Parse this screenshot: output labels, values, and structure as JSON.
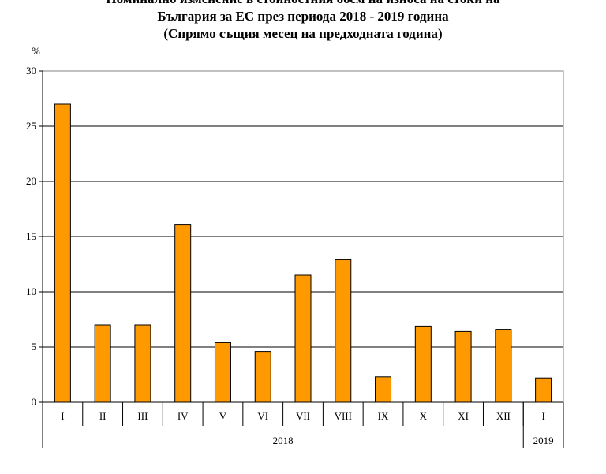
{
  "title_lines": [
    "Номинално изменение в стойностния обем на износа на стоки на",
    "България за ЕС през периода 2018 - 2019 година",
    "(Спрямо същия месец на предходната година)"
  ],
  "chart_data": {
    "type": "bar",
    "unit_label": "%",
    "categories": [
      "I",
      "II",
      "III",
      "IV",
      "V",
      "VI",
      "VII",
      "VIII",
      "IX",
      "X",
      "XI",
      "XII",
      "I"
    ],
    "values": [
      27.0,
      7.0,
      7.0,
      16.1,
      5.4,
      4.6,
      11.5,
      12.9,
      2.3,
      6.9,
      6.4,
      6.6,
      2.2
    ],
    "year_groups": [
      {
        "label": "2018",
        "count": 12
      },
      {
        "label": "2019",
        "count": 1
      }
    ],
    "ylim": [
      0,
      30
    ],
    "yticks": [
      0,
      5,
      10,
      15,
      20,
      25,
      30
    ],
    "grid": true,
    "bar_color": "#ff9900",
    "bar_stroke": "#000000"
  }
}
